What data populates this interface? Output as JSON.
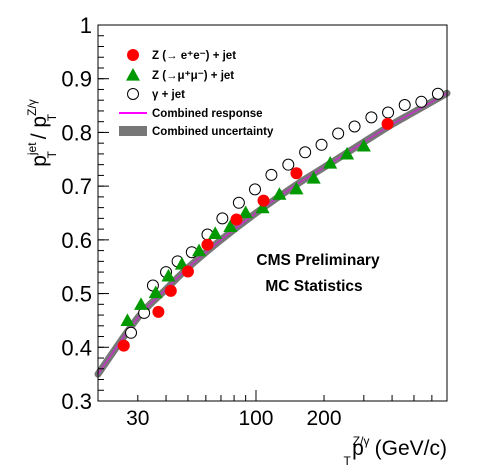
{
  "chart_data": {
    "type": "scatter",
    "x_scale": "log",
    "xlim": [
      20,
      700
    ],
    "ylim": [
      0.3,
      1.0
    ],
    "grid": false,
    "legend_position": "top-left",
    "xlabel": {
      "base": "p",
      "sub": "T",
      "sup": "Z/γ",
      "unit": " (GeV/c)"
    },
    "ylabel": {
      "num_base": "p",
      "num_sub": "T",
      "num_sup": "jet",
      "slash": " / ",
      "den_base": "p",
      "den_sub": "T",
      "den_sup": "Z/γ"
    },
    "x_tick_labels": [
      "30",
      "100",
      "200"
    ],
    "x_tick_values": [
      30,
      100,
      200
    ],
    "y_tick_labels": [
      "0.3",
      "0.4",
      "0.5",
      "0.6",
      "0.7",
      "0.8",
      "0.9",
      "1"
    ],
    "y_tick_values": [
      0.3,
      0.4,
      0.5,
      0.6,
      0.7,
      0.8,
      0.9,
      1.0
    ],
    "annotations": [
      "CMS Preliminary",
      "MC Statistics"
    ],
    "series": [
      {
        "name": "Z (→ e⁺e⁻) + jet",
        "marker": "filled-circle",
        "color": "#ff0000",
        "x": [
          26,
          37,
          42,
          50,
          61,
          82,
          108,
          151,
          382
        ],
        "y": [
          0.403,
          0.466,
          0.505,
          0.541,
          0.591,
          0.638,
          0.673,
          0.724,
          0.816
        ]
      },
      {
        "name": "Z (→μ⁺μ⁻) + jet",
        "marker": "filled-triangle",
        "color": "#009900",
        "x": [
          27,
          31,
          36,
          41,
          47,
          56,
          66,
          77,
          90,
          107,
          127,
          151,
          180,
          213,
          253,
          300
        ],
        "y": [
          0.45,
          0.48,
          0.502,
          0.533,
          0.555,
          0.58,
          0.612,
          0.625,
          0.651,
          0.66,
          0.685,
          0.695,
          0.715,
          0.743,
          0.76,
          0.775
        ]
      },
      {
        "name": "γ + jet",
        "marker": "open-circle",
        "color": "#000000",
        "x": [
          28,
          32,
          35,
          40,
          45,
          52,
          61,
          71,
          84,
          99,
          117,
          139,
          165,
          195,
          231,
          273,
          324,
          384,
          455,
          539,
          638
        ],
        "y": [
          0.427,
          0.464,
          0.515,
          0.54,
          0.56,
          0.577,
          0.61,
          0.64,
          0.669,
          0.694,
          0.721,
          0.74,
          0.763,
          0.777,
          0.798,
          0.811,
          0.828,
          0.837,
          0.851,
          0.857,
          0.872
        ]
      }
    ],
    "combined": {
      "response_label": "Combined response",
      "response_color": "#ff00ff",
      "uncertainty_label": "Combined uncertainty",
      "uncertainty_color": "#777777",
      "x": [
        20,
        30,
        40,
        50,
        70,
        100,
        150,
        200,
        300,
        400,
        500,
        700
      ],
      "y": [
        0.35,
        0.455,
        0.508,
        0.548,
        0.6,
        0.65,
        0.702,
        0.735,
        0.782,
        0.815,
        0.838,
        0.873
      ]
    }
  }
}
